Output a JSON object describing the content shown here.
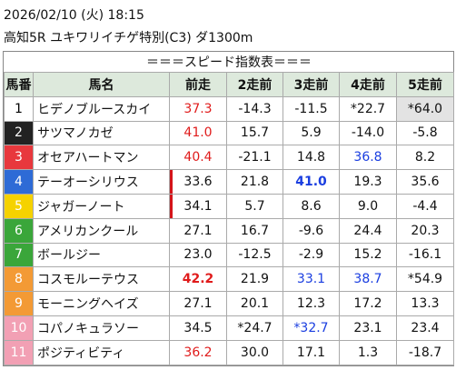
{
  "header": {
    "datetime": "2026/02/10 (火) 18:15",
    "race": "高知5R ユキワリイチゲ特別(C3) ダ1300m"
  },
  "table": {
    "title": "＝＝＝スピード指数表＝＝＝",
    "columns": [
      "馬番",
      "馬名",
      "前走",
      "2走前",
      "3走前",
      "4走前",
      "5走前"
    ],
    "rows": [
      {
        "num": "1",
        "bg": "#ffffff",
        "fg": "#000000",
        "name": "ヒデノブルースカイ",
        "values": [
          "37.3",
          "-14.3",
          "-11.5",
          "*22.7",
          "*64.0"
        ],
        "styles": [
          "red",
          "",
          "",
          "",
          "gray"
        ]
      },
      {
        "num": "2",
        "bg": "#222222",
        "fg": "#ffffff",
        "name": "サツマノカゼ",
        "values": [
          "41.0",
          "15.7",
          "5.9",
          "-14.0",
          "-5.8"
        ],
        "styles": [
          "red",
          "",
          "",
          "",
          ""
        ]
      },
      {
        "num": "3",
        "bg": "#e8383d",
        "fg": "#ffffff",
        "name": "オセアハートマン",
        "values": [
          "40.4",
          "-21.1",
          "14.8",
          "36.8",
          "8.2"
        ],
        "styles": [
          "red",
          "",
          "",
          "blue",
          ""
        ]
      },
      {
        "num": "4",
        "bg": "#2e6bd6",
        "fg": "#ffffff",
        "name": "テーオーシリウス",
        "values": [
          "33.6",
          "21.8",
          "41.0",
          "19.3",
          "35.6"
        ],
        "styles": [
          "",
          "",
          "blue-bold",
          "",
          ""
        ],
        "marker": true
      },
      {
        "num": "5",
        "bg": "#f5d200",
        "fg": "#ffffff",
        "name": "ジャガーノート",
        "values": [
          "34.1",
          "5.7",
          "8.6",
          "9.0",
          "-4.4"
        ],
        "styles": [
          "",
          "",
          "",
          "",
          ""
        ],
        "marker": true
      },
      {
        "num": "6",
        "bg": "#3aa63a",
        "fg": "#ffffff",
        "name": "アメリカンクール",
        "values": [
          "27.1",
          "16.7",
          "-9.6",
          "24.4",
          "20.3"
        ],
        "styles": [
          "",
          "",
          "",
          "",
          ""
        ]
      },
      {
        "num": "7",
        "bg": "#3aa63a",
        "fg": "#ffffff",
        "name": "ボールジー",
        "values": [
          "23.0",
          "-12.5",
          "-2.9",
          "15.2",
          "-16.1"
        ],
        "styles": [
          "",
          "",
          "",
          "",
          ""
        ]
      },
      {
        "num": "8",
        "bg": "#f39a35",
        "fg": "#ffffff",
        "name": "コスモルーテウス",
        "values": [
          "42.2",
          "21.9",
          "33.1",
          "38.7",
          "*54.9"
        ],
        "styles": [
          "red-bold",
          "",
          "blue",
          "blue",
          ""
        ]
      },
      {
        "num": "9",
        "bg": "#f39a35",
        "fg": "#ffffff",
        "name": "モーニングヘイズ",
        "values": [
          "27.1",
          "20.1",
          "12.3",
          "17.2",
          "13.3"
        ],
        "styles": [
          "",
          "",
          "",
          "",
          ""
        ]
      },
      {
        "num": "10",
        "bg": "#f2a0b4",
        "fg": "#ffffff",
        "name": "コパノキュラソー",
        "values": [
          "34.5",
          "*24.7",
          "*32.7",
          "23.1",
          "23.4"
        ],
        "styles": [
          "",
          "",
          "blue",
          "",
          ""
        ]
      },
      {
        "num": "11",
        "bg": "#f2a0b4",
        "fg": "#ffffff",
        "name": "ポジティビティ",
        "values": [
          "36.2",
          "30.0",
          "17.1",
          "1.3",
          "-18.7"
        ],
        "styles": [
          "red",
          "",
          "",
          "",
          ""
        ]
      }
    ]
  }
}
